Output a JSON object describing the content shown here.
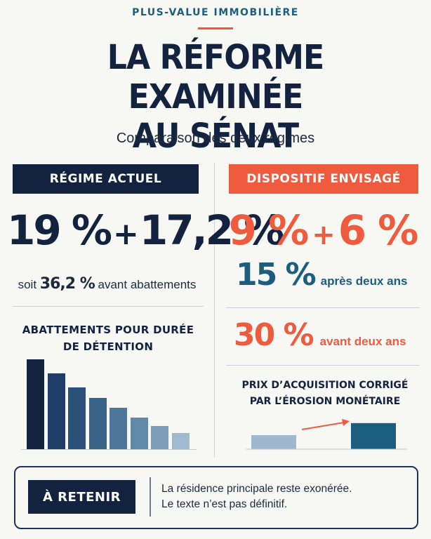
{
  "header": {
    "kicker": "PLUS-VALUE IMMOBILIÈRE",
    "title_line1": "LA RÉFORME EXAMINÉE",
    "title_line2": "AU SÉNAT",
    "subtitle": "Comparaison des deux régimes"
  },
  "colors": {
    "navy": "#13233f",
    "orange": "#ef5b3e",
    "teal": "#1b5e7e"
  },
  "left": {
    "heading": "RÉGIME ACTUEL",
    "rate_a": "19 %",
    "plus": "+",
    "rate_b": "17,2 %",
    "soit_prefix": "soit",
    "soit_total": "36,2 %",
    "soit_suffix": "avant abattements",
    "abat_title_line1": "ABATTEMENTS POUR DURÉE",
    "abat_title_line2": "DE DÉTENTION"
  },
  "right": {
    "heading": "DISPOSITIF ENVISAGÉ",
    "rate_a": "9 %",
    "plus": "+",
    "rate_b": "6 %",
    "rate_15": "15 %",
    "rate_15_label": "après deux ans",
    "rate_30": "30 %",
    "rate_30_label": "avant deux ans",
    "prix_title_line1": "PRIX D’ACQUISITION CORRIGÉ",
    "prix_title_line2": "PAR L’ÉROSION MONÉTAIRE"
  },
  "chart_data": [
    {
      "type": "bar",
      "title": "ABATTEMENTS POUR DURÉE DE DÉTENTION",
      "categories": [
        "",
        "",
        "",
        "",
        "",
        "",
        "",
        ""
      ],
      "values": [
        100,
        84,
        69,
        57,
        46,
        35,
        26,
        18
      ],
      "ylim": [
        0,
        100
      ],
      "xlabel": "",
      "ylabel": "",
      "grid": false,
      "colors": [
        "#13233f",
        "#1f3d66",
        "#2b5079",
        "#3a6389",
        "#4d7698",
        "#6289a8",
        "#7c9eba",
        "#9fbad0"
      ]
    },
    {
      "type": "bar",
      "title": "PRIX D’ACQUISITION CORRIGÉ PAR L’ÉROSION MONÉTAIRE",
      "categories": [
        "",
        ""
      ],
      "values": [
        35,
        65
      ],
      "ylim": [
        0,
        70
      ],
      "xlabel": "",
      "ylabel": "",
      "grid": false,
      "colors": [
        "#9fb8cf",
        "#1b5e7e"
      ],
      "arrow_color": "#ef5b3e"
    }
  ],
  "retenir": {
    "label": "À RETENIR",
    "line1": "La résidence principale reste exonérée.",
    "line2": "Le texte n’est pas définitif."
  }
}
